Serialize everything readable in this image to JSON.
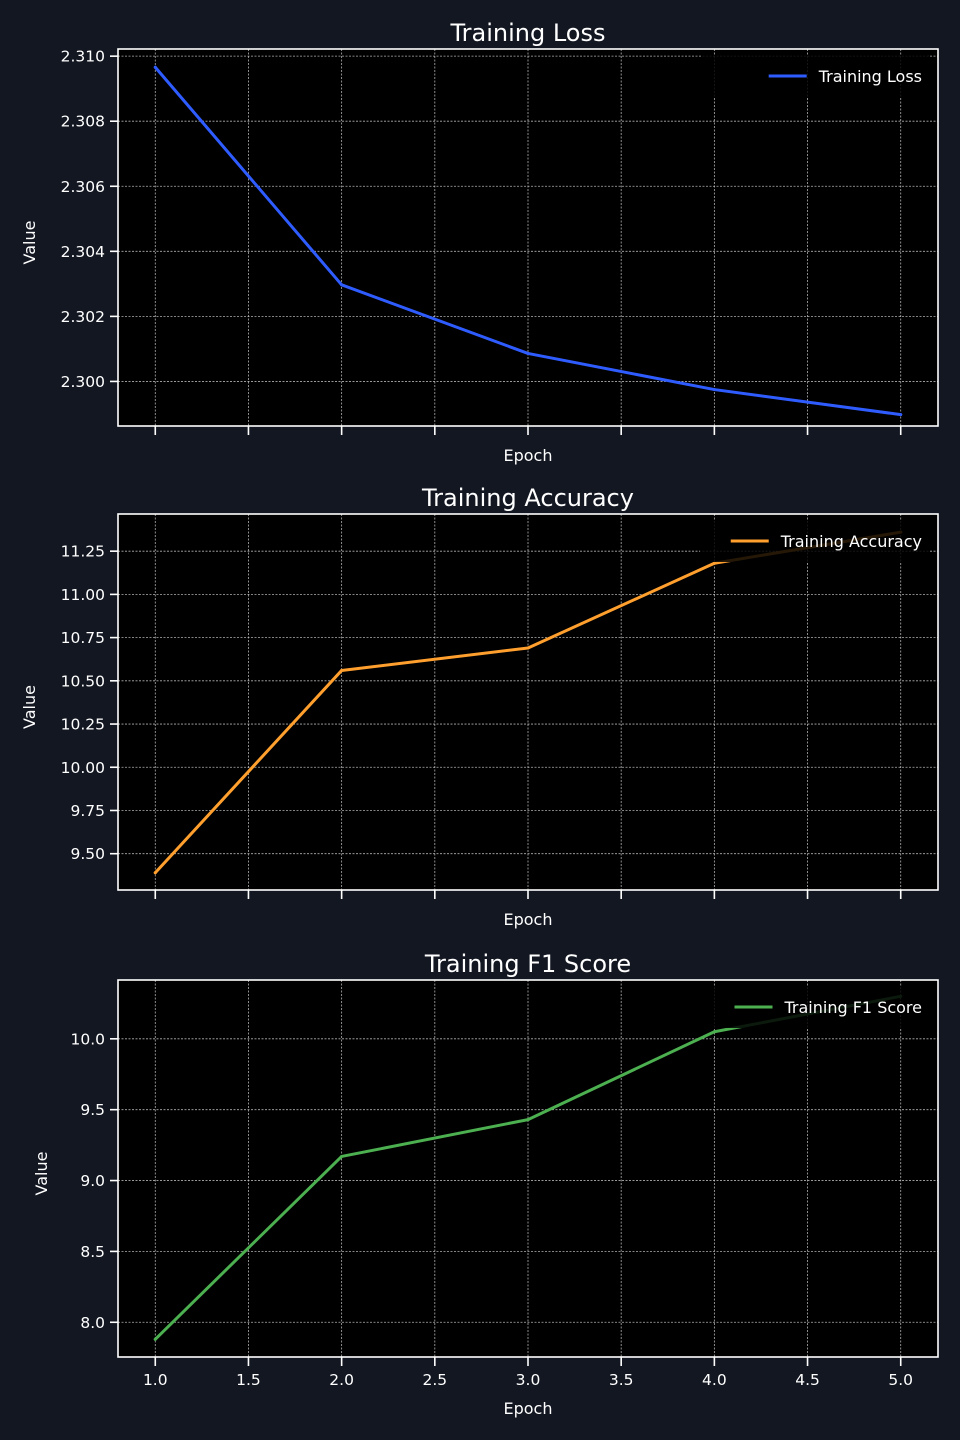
{
  "colors": {
    "figure_background": "#131722",
    "plot_background": "#000000",
    "text": "#ffffff",
    "grid": "#cfcfcf"
  },
  "chart_data": [
    {
      "type": "line",
      "title": "Training Loss",
      "xlabel": "Epoch",
      "ylabel": "Value",
      "x": [
        1,
        2,
        3,
        4,
        5
      ],
      "series": [
        {
          "name": "Training Loss",
          "color": "#2f5cff",
          "values": [
            2.30966,
            2.30297,
            2.30086,
            2.29975,
            2.29898
          ]
        }
      ],
      "xlim": [
        0.8,
        5.2
      ],
      "ylim": [
        2.29863,
        2.31022
      ],
      "xticks": [
        1.0,
        1.5,
        2.0,
        2.5,
        3.0,
        3.5,
        4.0,
        4.5,
        5.0
      ],
      "yticks": [
        2.3,
        2.302,
        2.304,
        2.306,
        2.308,
        2.31
      ],
      "ytick_labels": [
        "2.300",
        "2.302",
        "2.304",
        "2.306",
        "2.308",
        "2.310"
      ],
      "show_xtick_labels": false,
      "grid": true,
      "legend": "upper right"
    },
    {
      "type": "line",
      "title": "Training Accuracy",
      "xlabel": "Epoch",
      "ylabel": "Value",
      "x": [
        1,
        2,
        3,
        4,
        5
      ],
      "series": [
        {
          "name": "Training Accuracy",
          "color": "#ff9f2e",
          "values": [
            9.39,
            10.56,
            10.69,
            11.18,
            11.36
          ]
        }
      ],
      "xlim": [
        0.8,
        5.2
      ],
      "ylim": [
        9.29,
        11.465
      ],
      "xticks": [
        1.0,
        1.5,
        2.0,
        2.5,
        3.0,
        3.5,
        4.0,
        4.5,
        5.0
      ],
      "yticks": [
        9.5,
        9.75,
        10.0,
        10.25,
        10.5,
        10.75,
        11.0,
        11.25
      ],
      "ytick_labels": [
        "9.50",
        "9.75",
        "10.00",
        "10.25",
        "10.50",
        "10.75",
        "11.00",
        "11.25"
      ],
      "show_xtick_labels": false,
      "grid": true,
      "legend": "upper right"
    },
    {
      "type": "line",
      "title": "Training F1 Score",
      "xlabel": "Epoch",
      "ylabel": "Value",
      "x": [
        1,
        2,
        3,
        4,
        5
      ],
      "series": [
        {
          "name": "Training F1 Score",
          "color": "#4caf50",
          "values": [
            7.88,
            9.17,
            9.43,
            10.05,
            10.3
          ]
        }
      ],
      "xlim": [
        0.8,
        5.2
      ],
      "ylim": [
        7.755,
        10.415
      ],
      "xticks": [
        1.0,
        1.5,
        2.0,
        2.5,
        3.0,
        3.5,
        4.0,
        4.5,
        5.0
      ],
      "xtick_labels": [
        "1.0",
        "1.5",
        "2.0",
        "2.5",
        "3.0",
        "3.5",
        "4.0",
        "4.5",
        "5.0"
      ],
      "yticks": [
        8.0,
        8.5,
        9.0,
        9.5,
        10.0
      ],
      "ytick_labels": [
        "8.0",
        "8.5",
        "9.0",
        "9.5",
        "10.0"
      ],
      "show_xtick_labels": true,
      "grid": true,
      "legend": "upper right"
    }
  ]
}
